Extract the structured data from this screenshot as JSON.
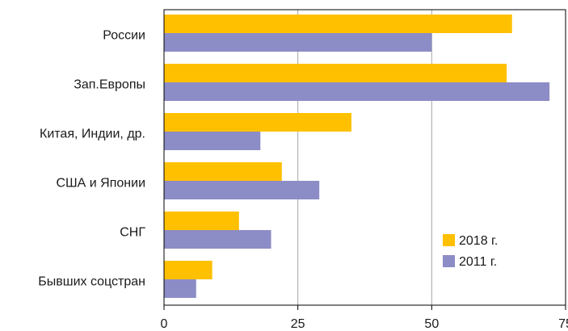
{
  "chart_data": {
    "type": "bar",
    "orientation": "horizontal",
    "categories": [
      "России",
      "Зап.Европы",
      "Китая, Индии, др.",
      "США и Японии",
      "СНГ",
      "Бывших  соцстран"
    ],
    "series": [
      {
        "name": "2018 г.",
        "color": "#FFC000",
        "values": [
          65,
          64,
          35,
          22,
          14,
          9
        ]
      },
      {
        "name": "2011 г.",
        "color": "#8C8CC6",
        "values": [
          50,
          72,
          18,
          29,
          20,
          6
        ]
      }
    ],
    "xticks": [
      "0",
      "25",
      "50",
      "75"
    ],
    "xlim": [
      0,
      75
    ],
    "grid": "vertical",
    "legend_position": "bottom-right",
    "title": "",
    "xlabel": "",
    "ylabel": ""
  }
}
